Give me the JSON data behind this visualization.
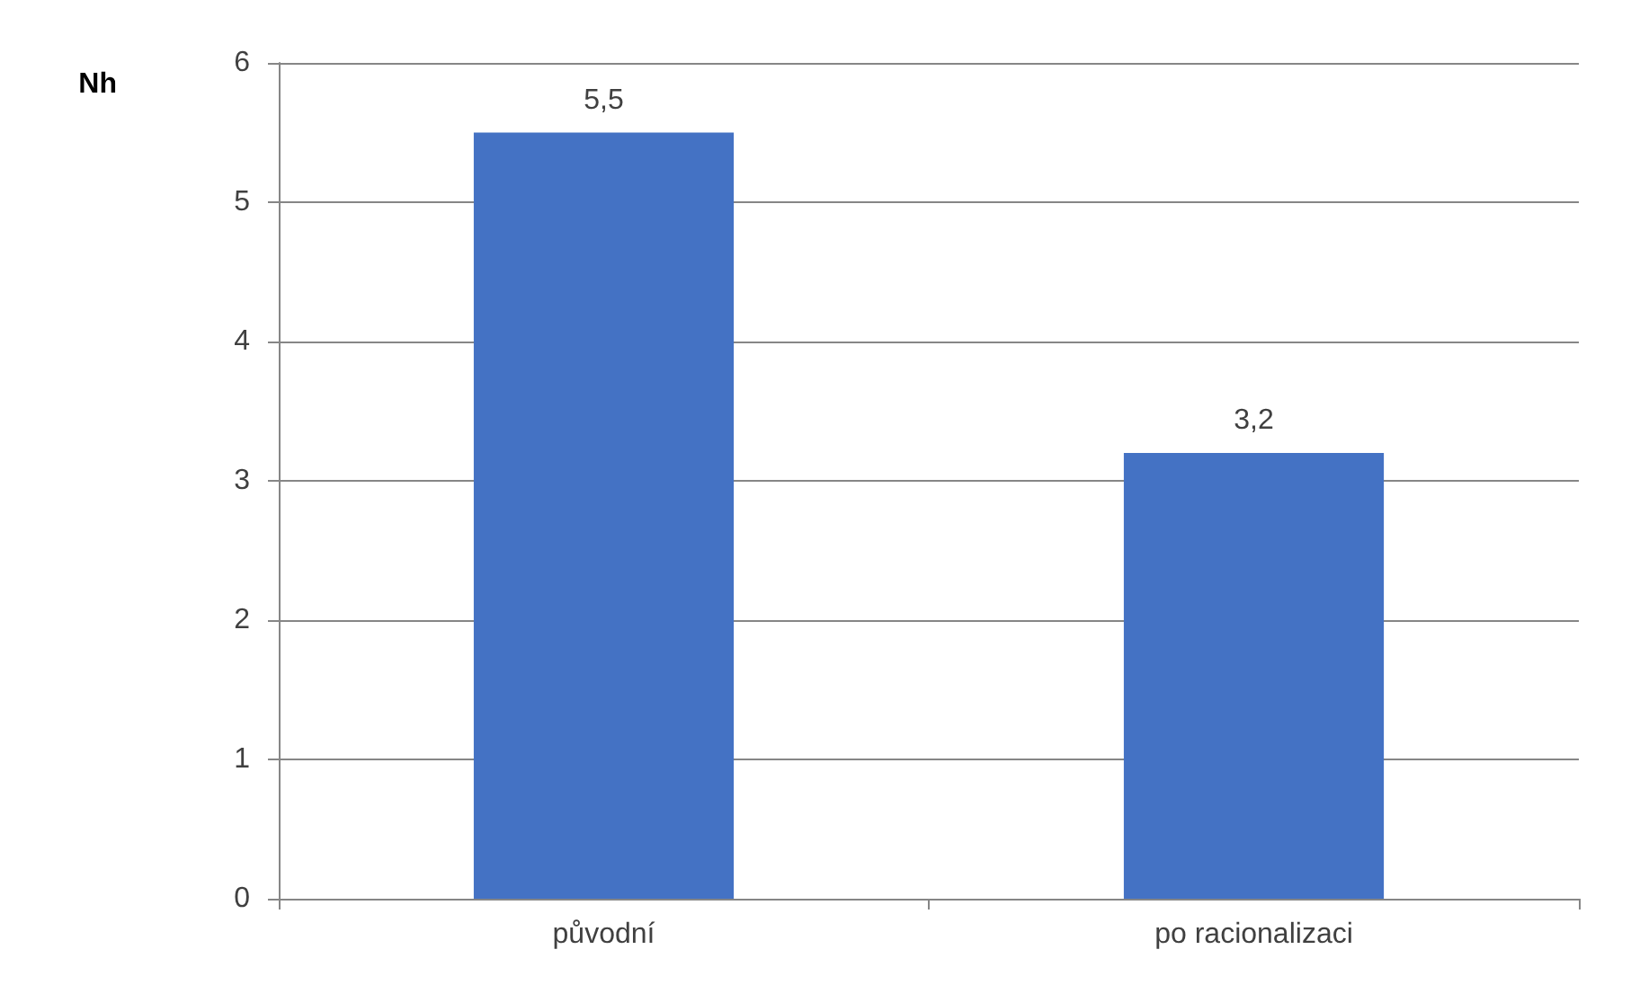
{
  "chart_data": {
    "type": "bar",
    "ylabel": "Nh",
    "categories": [
      "původní",
      "po racionalizaci"
    ],
    "values": [
      5.5,
      3.2
    ],
    "color": "#4472c4",
    "value_labels": [
      "5,5",
      "3,2"
    ],
    "ylim": [
      0,
      6
    ],
    "yticks": [
      0,
      1,
      2,
      3,
      4,
      5,
      6
    ],
    "grid": "y"
  }
}
